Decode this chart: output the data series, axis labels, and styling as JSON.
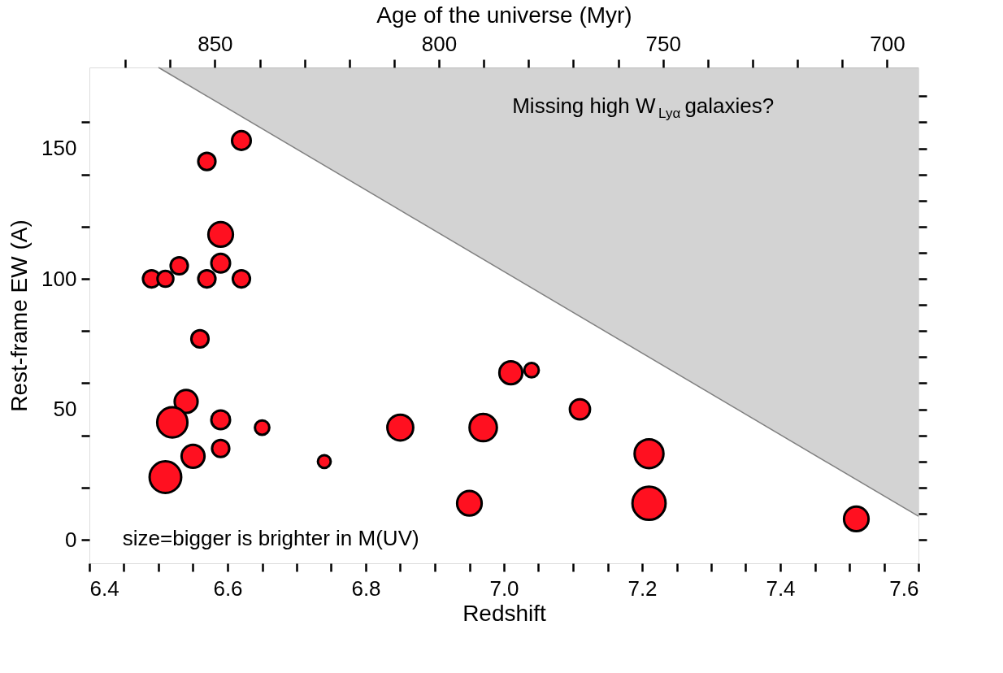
{
  "chart_data": {
    "type": "bubble",
    "xlabel": "Redshift",
    "ylabel": "Rest-frame EW (A)",
    "x2label": "Age of the universe (Myr)",
    "xlim": [
      6.4,
      7.6
    ],
    "ylim": [
      -9,
      181
    ],
    "x2lim": [
      878,
      693
    ],
    "xticks": [
      6.4,
      {
        "value": 6.45,
        "label": null
      },
      {
        "value": 6.5,
        "label": null
      },
      {
        "value": 6.55,
        "label": null
      },
      6.6,
      {
        "value": 6.65,
        "label": null
      },
      {
        "value": 6.7,
        "label": null
      },
      {
        "value": 6.75,
        "label": null
      },
      6.8,
      {
        "value": 6.85,
        "label": null
      },
      {
        "value": 6.9,
        "label": null
      },
      {
        "value": 6.95,
        "label": null
      },
      {
        "value": 7,
        "label": "7.0"
      },
      {
        "value": 7.05,
        "label": null
      },
      {
        "value": 7.1,
        "label": null
      },
      {
        "value": 7.15,
        "label": null
      },
      7.2,
      {
        "value": 7.25,
        "label": null
      },
      {
        "value": 7.3,
        "label": null
      },
      {
        "value": 7.35,
        "label": null
      },
      7.4,
      {
        "value": 7.45,
        "label": null
      },
      {
        "value": 7.5,
        "label": null
      },
      {
        "value": 7.55,
        "label": null
      },
      7.6
    ],
    "yticks": [
      0,
      {
        "value": 10,
        "label": null
      },
      {
        "value": 20,
        "label": null
      },
      {
        "value": 30,
        "label": null
      },
      {
        "value": 40,
        "label": null
      },
      50,
      {
        "value": 60,
        "label": null
      },
      {
        "value": 70,
        "label": null
      },
      {
        "value": 80,
        "label": null
      },
      {
        "value": 90,
        "label": null
      },
      100,
      {
        "value": 110,
        "label": null
      },
      {
        "value": 120,
        "label": null
      },
      {
        "value": 130,
        "label": null
      },
      {
        "value": 140,
        "label": null
      },
      150,
      {
        "value": 160,
        "label": null
      },
      {
        "value": 170,
        "label": null
      }
    ],
    "x2ticks": [
      {
        "value": 870,
        "label": null
      },
      {
        "value": 860,
        "label": null
      },
      850,
      {
        "value": 840,
        "label": null
      },
      {
        "value": 830,
        "label": null
      },
      {
        "value": 820,
        "label": null
      },
      {
        "value": 810,
        "label": null
      },
      800,
      {
        "value": 790,
        "label": null
      },
      {
        "value": 780,
        "label": null
      },
      {
        "value": 770,
        "label": null
      },
      {
        "value": 760,
        "label": null
      },
      750,
      {
        "value": 740,
        "label": null
      },
      {
        "value": 730,
        "label": null
      },
      {
        "value": 720,
        "label": null
      },
      {
        "value": 710,
        "label": null
      },
      700
    ],
    "grid": false,
    "legend": false,
    "marker": "circle",
    "series": [
      {
        "type": "line",
        "marker": "none",
        "color": "#808080",
        "x": [
          6.5,
          7.6
        ],
        "values": [
          181,
          9
        ],
        "lower": [
          181,
          9
        ],
        "upper": [
          181,
          181
        ]
      },
      {
        "color": "#ff1020",
        "x": [
          6.49,
          6.51,
          6.53,
          6.57,
          6.62,
          6.59,
          6.59,
          6.57,
          6.62,
          6.56,
          6.54,
          6.52,
          6.59,
          6.51,
          6.55,
          6.59,
          6.65,
          6.74,
          6.85,
          6.97,
          6.95,
          7.01,
          7.04,
          7.11,
          7.21,
          7.21,
          7.51
        ],
        "values": [
          100,
          100,
          105,
          145,
          153,
          117,
          106,
          100,
          100,
          77,
          53,
          45,
          46,
          24,
          32,
          35,
          43,
          30,
          43,
          43,
          14,
          64,
          65,
          50,
          33,
          14,
          8
        ],
        "sizes": [
          0.27,
          0.23,
          0.27,
          0.27,
          0.32,
          0.55,
          0.32,
          0.27,
          0.27,
          0.27,
          0.48,
          0.83,
          0.32,
          0.91,
          0.48,
          0.27,
          0.19,
          0.15,
          0.61,
          0.68,
          0.55,
          0.48,
          0.19,
          0.37,
          0.76,
          1.0,
          0.55
        ]
      }
    ],
    "annotations": [
      "Missing high W$_{Lyα}$ galaxies?",
      "size=bigger is brighter in M(UV)"
    ]
  }
}
